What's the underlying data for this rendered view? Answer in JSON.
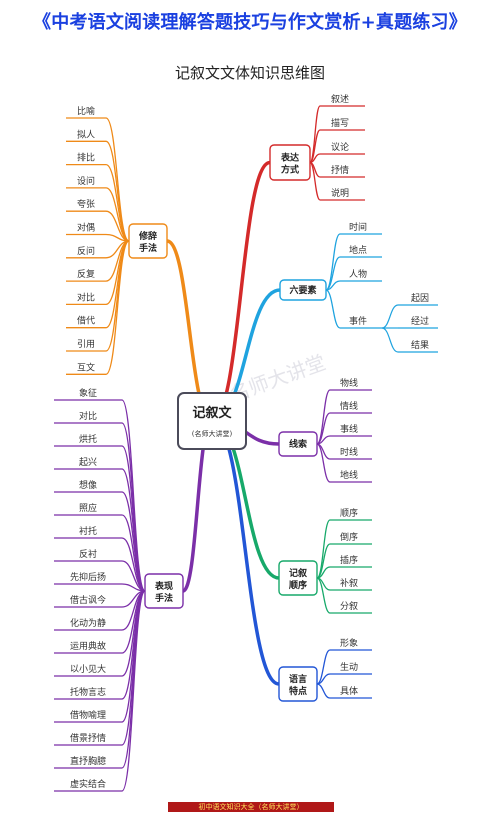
{
  "page": {
    "banner": "《中考语文阅读理解答题技巧与作文赏析+真题练习》",
    "title": "记叙文文体知识思维图",
    "footer": "初中语文知识大全（名师大讲堂）"
  },
  "mindmap": {
    "center": {
      "title": "记叙文",
      "subtitle": "(名师大讲堂)"
    },
    "watermark": "名师大讲堂",
    "branches": [
      {
        "id": "b1",
        "label": "表达方式",
        "color": "#d42a2a",
        "children": [
          "叙述",
          "描写",
          "议论",
          "抒情",
          "说明"
        ]
      },
      {
        "id": "b2",
        "label": "六要素",
        "color": "#1fa3df",
        "children": [
          "时间",
          "地点",
          "人物",
          "事件"
        ],
        "sub": {
          "parent": "事件",
          "children": [
            "起因",
            "经过",
            "结果"
          ]
        }
      },
      {
        "id": "b3",
        "label": "线索",
        "color": "#7b2fa8",
        "children": [
          "物线",
          "情线",
          "事线",
          "时线",
          "地线"
        ]
      },
      {
        "id": "b4",
        "label": "记叙顺序",
        "color": "#17a96a",
        "children": [
          "顺序",
          "倒序",
          "插序",
          "补叙",
          "分叙"
        ]
      },
      {
        "id": "b5",
        "label": "语言特点",
        "color": "#2256d6",
        "children": [
          "形象",
          "生动",
          "具体"
        ]
      },
      {
        "id": "b6",
        "label": "修辞手法",
        "color": "#ef8a18",
        "children": [
          "比喻",
          "拟人",
          "排比",
          "设问",
          "夸张",
          "对偶",
          "反问",
          "反复",
          "对比",
          "借代",
          "引用",
          "互文"
        ]
      },
      {
        "id": "b7",
        "label": "表现手法",
        "color": "#7b2fa8",
        "children": [
          "象征",
          "对比",
          "烘托",
          "起兴",
          "想像",
          "照应",
          "衬托",
          "反衬",
          "先抑后扬",
          "借古讽今",
          "化动为静",
          "运用典故",
          "以小见大",
          "托物言志",
          "借物喻理",
          "借景抒情",
          "直抒胸臆",
          "虚实结合"
        ]
      }
    ]
  }
}
